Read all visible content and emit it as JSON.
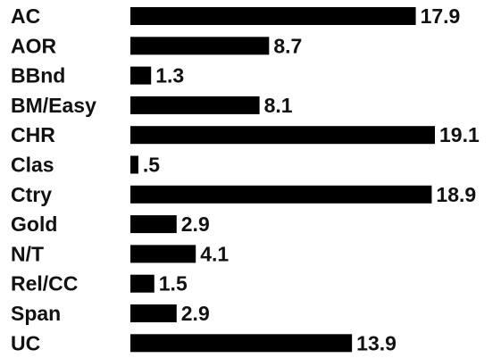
{
  "colors": {
    "bar": "#000000",
    "text": "#111111",
    "background": "#ffffff"
  },
  "chart_data": {
    "type": "bar",
    "orientation": "horizontal",
    "title": "",
    "xlabel": "",
    "ylabel": "",
    "grid": false,
    "legend": "none",
    "xlim": [
      0,
      19.1
    ],
    "categories": [
      "AC",
      "AOR",
      "BBnd",
      "BM/Easy",
      "CHR",
      "Clas",
      "Ctry",
      "Gold",
      "N/T",
      "Rel/CC",
      "Span",
      "UC"
    ],
    "values": [
      17.9,
      8.7,
      1.3,
      8.1,
      19.1,
      0.5,
      18.9,
      2.9,
      4.1,
      1.5,
      2.9,
      13.9
    ],
    "value_labels": [
      "17.9",
      "8.7",
      "1.3",
      "8.1",
      "19.1",
      ".5",
      "18.9",
      "2.9",
      "4.1",
      "1.5",
      "2.9",
      "13.9"
    ]
  }
}
